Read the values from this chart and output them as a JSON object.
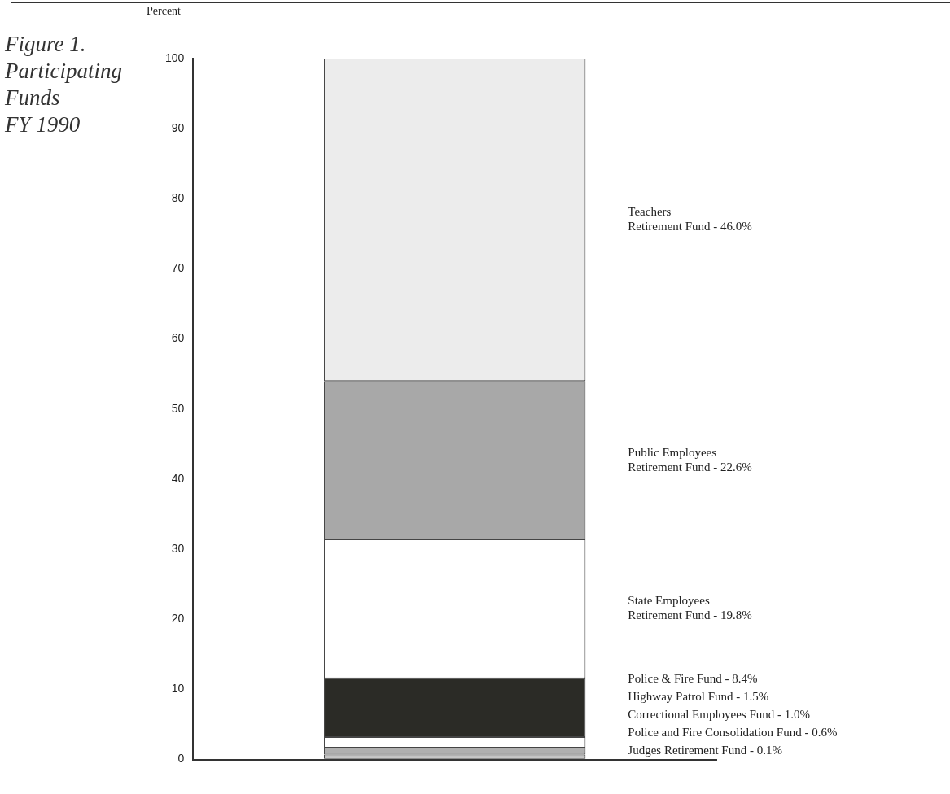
{
  "chart_data": {
    "type": "bar",
    "title": "Figure 1.\nParticipating\nFunds\nFY 1990",
    "ylabel": "Percent",
    "categories": [
      null
    ],
    "stacked": true,
    "ylim": [
      0,
      100
    ],
    "yticks": [
      0,
      10,
      20,
      30,
      40,
      50,
      60,
      70,
      80,
      90,
      100
    ],
    "grid": false,
    "legend": false,
    "series": [
      {
        "name": "Judges Retirement Fund -",
        "color": "#8a8a8a",
        "values": [
          0.1
        ],
        "value_labels": [
          "0.1%"
        ]
      },
      {
        "name": "Police and Fire Consolidation Fund -",
        "color": "#c4c4c4",
        "values": [
          0.6
        ],
        "value_labels": [
          "0.6%"
        ]
      },
      {
        "name": "Correctional Employees Fund -",
        "color": "#b0b0b0",
        "values": [
          1.0
        ],
        "value_labels": [
          "1.0%"
        ]
      },
      {
        "name": "Highway Patrol Fund -",
        "color": "#ffffff",
        "values": [
          1.5
        ],
        "value_labels": [
          "1.5%"
        ]
      },
      {
        "name": "Police & Fire Fund -",
        "color": "#2b2b26",
        "values": [
          8.4
        ],
        "value_labels": [
          "8.4%"
        ]
      },
      {
        "name": "State Employees\nRetirement Fund -",
        "color": "#ffffff",
        "values": [
          19.8
        ],
        "value_labels": [
          "19.8%"
        ]
      },
      {
        "name": "Public Employees\nRetirement Fund -",
        "color": "#a8a8a8",
        "values": [
          22.6
        ],
        "value_labels": [
          "22.6%"
        ]
      },
      {
        "name": "Teachers\nRetirement Fund -",
        "color": "#ececec",
        "values": [
          46.0
        ],
        "value_labels": [
          "46.0%"
        ]
      }
    ]
  }
}
